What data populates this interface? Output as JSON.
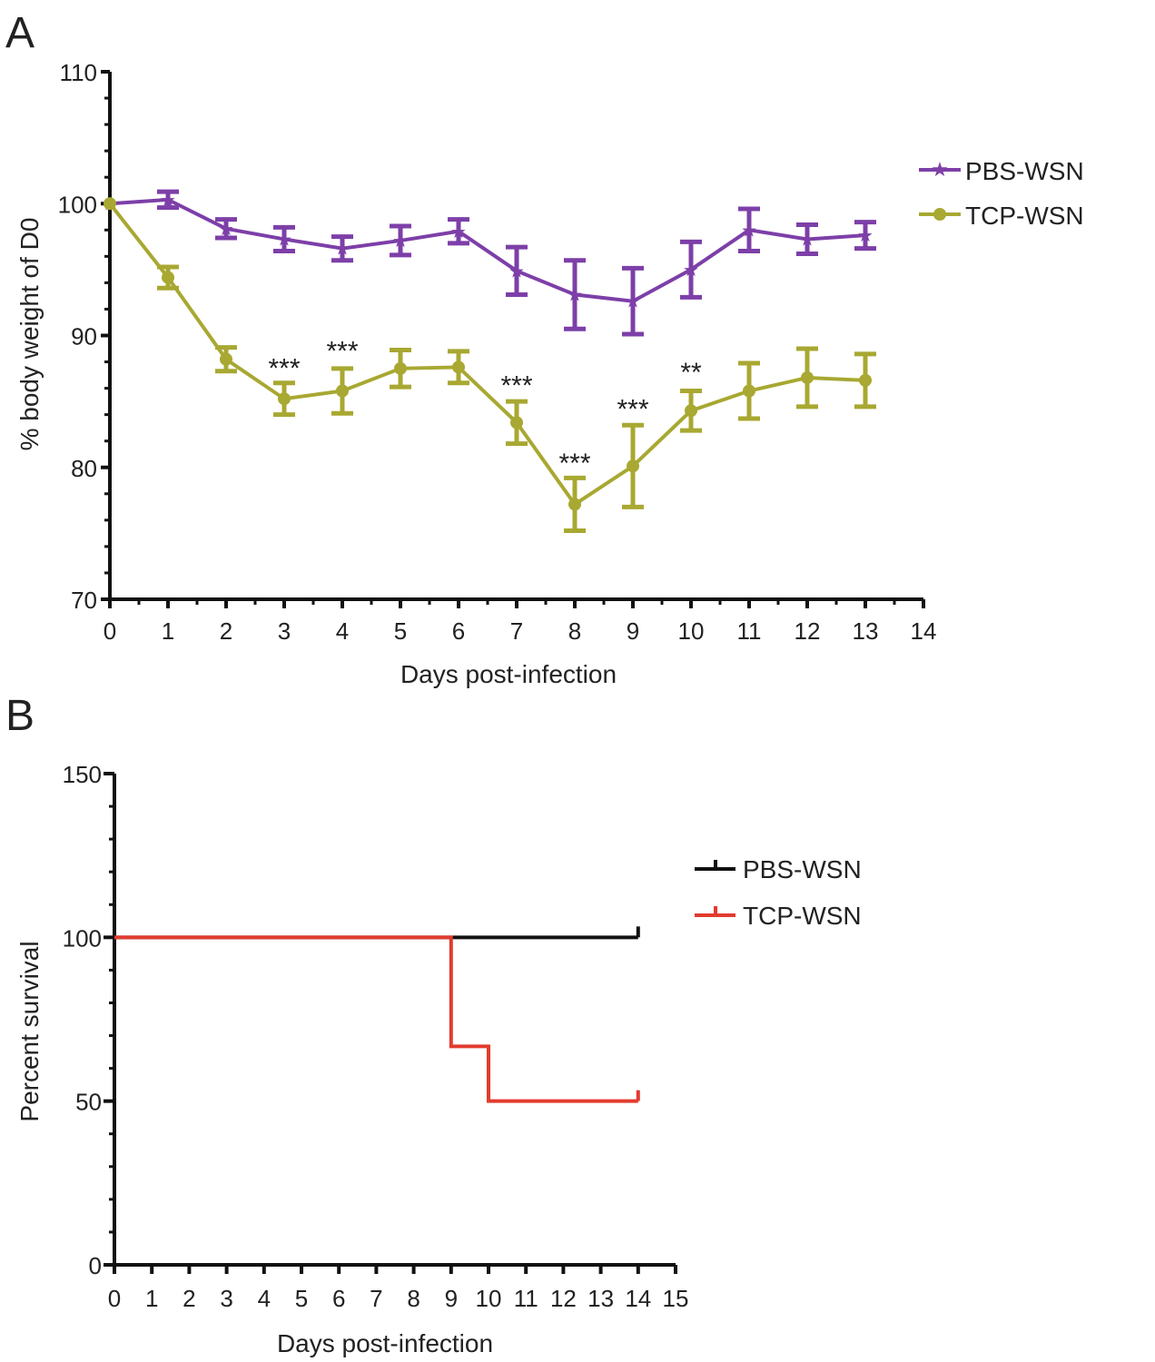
{
  "colors": {
    "axis": "#111111",
    "pbs_weight": "#7d3fa8",
    "tcp_weight": "#a8a832",
    "pbs_survival": "#111111",
    "tcp_survival": "#e23b2e",
    "text": "#222222"
  },
  "chart_data": [
    {
      "panel_label": "A",
      "type": "line",
      "title": "",
      "xlabel": "Days post-infection",
      "ylabel": "% body weight of D0",
      "xlim": [
        0,
        14
      ],
      "ylim": [
        70,
        110
      ],
      "xticks": [
        "0",
        "1",
        "2",
        "3",
        "4",
        "5",
        "6",
        "7",
        "8",
        "9",
        "10",
        "11",
        "12",
        "13",
        "14"
      ],
      "yticks": [
        "70",
        "80",
        "90",
        "100",
        "110"
      ],
      "legend_position": "top-right",
      "series": [
        {
          "name": "PBS-WSN",
          "marker": "star",
          "color": "#7d3fa8",
          "x": [
            0,
            1,
            2,
            3,
            4,
            5,
            6,
            7,
            8,
            9,
            10,
            11,
            12,
            13
          ],
          "y": [
            100,
            100.3,
            98.1,
            97.3,
            96.6,
            97.2,
            97.9,
            94.9,
            93.1,
            92.6,
            95.0,
            98.0,
            97.3,
            97.6
          ],
          "err": [
            0,
            0.6,
            0.7,
            0.9,
            0.9,
            1.1,
            0.9,
            1.8,
            2.6,
            2.5,
            2.1,
            1.6,
            1.1,
            1.0
          ]
        },
        {
          "name": "TCP-WSN",
          "marker": "circle",
          "color": "#a8a832",
          "x": [
            0,
            1,
            2,
            3,
            4,
            5,
            6,
            7,
            8,
            9,
            10,
            11,
            12,
            13
          ],
          "y": [
            100,
            94.4,
            88.2,
            85.2,
            85.8,
            87.5,
            87.6,
            83.4,
            77.2,
            80.1,
            84.3,
            85.8,
            86.8,
            86.6
          ],
          "err": [
            0,
            0.8,
            0.9,
            1.2,
            1.7,
            1.4,
            1.2,
            1.6,
            2.0,
            3.1,
            1.5,
            2.1,
            2.2,
            2.0
          ]
        }
      ],
      "annotations": [
        {
          "x": 3,
          "y": 87.8,
          "text": "***"
        },
        {
          "x": 4,
          "y": 89.1,
          "text": "***"
        },
        {
          "x": 7,
          "y": 86.5,
          "text": "***"
        },
        {
          "x": 8,
          "y": 80.6,
          "text": "***"
        },
        {
          "x": 9,
          "y": 84.7,
          "text": "***"
        },
        {
          "x": 10,
          "y": 87.5,
          "text": "**"
        }
      ]
    },
    {
      "panel_label": "B",
      "type": "line",
      "title": "",
      "xlabel": "Days post-infection",
      "ylabel": "Percent survival",
      "xlim": [
        0,
        15
      ],
      "ylim": [
        0,
        150
      ],
      "xticks": [
        "0",
        "1",
        "2",
        "3",
        "4",
        "5",
        "6",
        "7",
        "8",
        "9",
        "10",
        "11",
        "12",
        "13",
        "14",
        "15"
      ],
      "yticks": [
        "0",
        "50",
        "100",
        "150"
      ],
      "legend_position": "top-right",
      "series": [
        {
          "name": "PBS-WSN",
          "step": true,
          "color": "#111111",
          "x": [
            0,
            14
          ],
          "y": [
            100,
            100
          ]
        },
        {
          "name": "TCP-WSN",
          "step": true,
          "color": "#e23b2e",
          "x": [
            0,
            9,
            10,
            14
          ],
          "y": [
            100,
            66.7,
            50,
            50
          ]
        }
      ]
    }
  ]
}
